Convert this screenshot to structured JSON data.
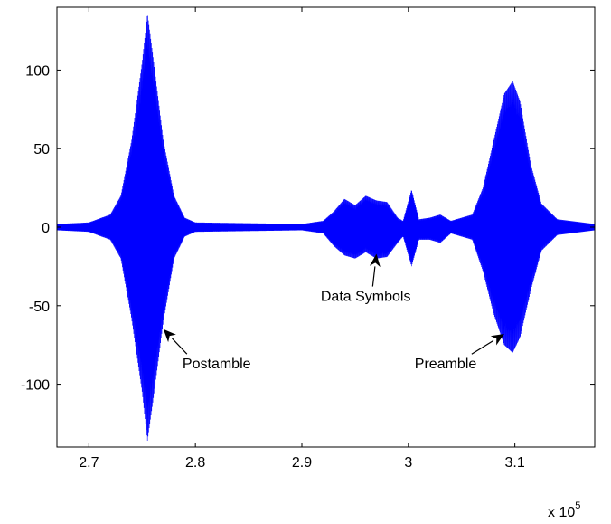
{
  "chart_data": {
    "type": "line",
    "title": "",
    "xlabel": "",
    "ylabel": "",
    "x_multiplier_label": {
      "base": "x 10",
      "exponent": "5"
    },
    "xlim": [
      2.67,
      3.175
    ],
    "ylim": [
      -140,
      140
    ],
    "x_ticks": [
      2.7,
      2.8,
      2.9,
      3.0,
      3.1
    ],
    "x_tick_labels": [
      "2.7",
      "2.8",
      "2.9",
      "3",
      "3.1"
    ],
    "y_ticks": [
      100,
      50,
      0,
      -50,
      -100
    ],
    "y_tick_labels": [
      "100",
      "50",
      "0",
      "-50",
      "-100"
    ],
    "grid": false,
    "legend": "none",
    "series": [
      {
        "color": "#0000ff",
        "envelope": [
          {
            "x": 2.67,
            "upper": 2,
            "lower": -2
          },
          {
            "x": 2.7,
            "upper": 3,
            "lower": -3
          },
          {
            "x": 2.72,
            "upper": 8,
            "lower": -8
          },
          {
            "x": 2.73,
            "upper": 20,
            "lower": -20
          },
          {
            "x": 2.74,
            "upper": 55,
            "lower": -58
          },
          {
            "x": 2.75,
            "upper": 105,
            "lower": -105
          },
          {
            "x": 2.755,
            "upper": 136,
            "lower": -136
          },
          {
            "x": 2.76,
            "upper": 110,
            "lower": -112
          },
          {
            "x": 2.77,
            "upper": 55,
            "lower": -60
          },
          {
            "x": 2.78,
            "upper": 20,
            "lower": -20
          },
          {
            "x": 2.79,
            "upper": 6,
            "lower": -6
          },
          {
            "x": 2.8,
            "upper": 3,
            "lower": -3
          },
          {
            "x": 2.9,
            "upper": 2,
            "lower": -2
          },
          {
            "x": 2.92,
            "upper": 4,
            "lower": -4
          },
          {
            "x": 2.93,
            "upper": 10,
            "lower": -12
          },
          {
            "x": 2.94,
            "upper": 18,
            "lower": -18
          },
          {
            "x": 2.95,
            "upper": 14,
            "lower": -20
          },
          {
            "x": 2.96,
            "upper": 20,
            "lower": -16
          },
          {
            "x": 2.97,
            "upper": 17,
            "lower": -20
          },
          {
            "x": 2.98,
            "upper": 16,
            "lower": -19
          },
          {
            "x": 2.99,
            "upper": 6,
            "lower": -10
          },
          {
            "x": 2.995,
            "upper": 4,
            "lower": -6
          },
          {
            "x": 3.003,
            "upper": 24,
            "lower": -25
          },
          {
            "x": 3.01,
            "upper": 5,
            "lower": -8
          },
          {
            "x": 3.02,
            "upper": 6,
            "lower": -8
          },
          {
            "x": 3.03,
            "upper": 8,
            "lower": -10
          },
          {
            "x": 3.04,
            "upper": 4,
            "lower": -4
          },
          {
            "x": 3.06,
            "upper": 8,
            "lower": -8
          },
          {
            "x": 3.07,
            "upper": 25,
            "lower": -28
          },
          {
            "x": 3.08,
            "upper": 55,
            "lower": -55
          },
          {
            "x": 3.09,
            "upper": 85,
            "lower": -75
          },
          {
            "x": 3.098,
            "upper": 93,
            "lower": -80
          },
          {
            "x": 3.105,
            "upper": 80,
            "lower": -70
          },
          {
            "x": 3.115,
            "upper": 40,
            "lower": -40
          },
          {
            "x": 3.125,
            "upper": 15,
            "lower": -15
          },
          {
            "x": 3.14,
            "upper": 5,
            "lower": -5
          },
          {
            "x": 3.175,
            "upper": 2,
            "lower": -2
          }
        ]
      }
    ],
    "annotations": [
      {
        "text": "Postamble",
        "text_x": 2.82,
        "text_y": -90,
        "arrow_to_x": 2.77,
        "arrow_to_y": -65
      },
      {
        "text": "Data Symbols",
        "text_x": 2.96,
        "text_y": -47,
        "arrow_to_x": 2.97,
        "arrow_to_y": -17
      },
      {
        "text": "Preamble",
        "text_x": 3.035,
        "text_y": -90,
        "arrow_to_x": 3.09,
        "arrow_to_y": -68
      }
    ]
  }
}
